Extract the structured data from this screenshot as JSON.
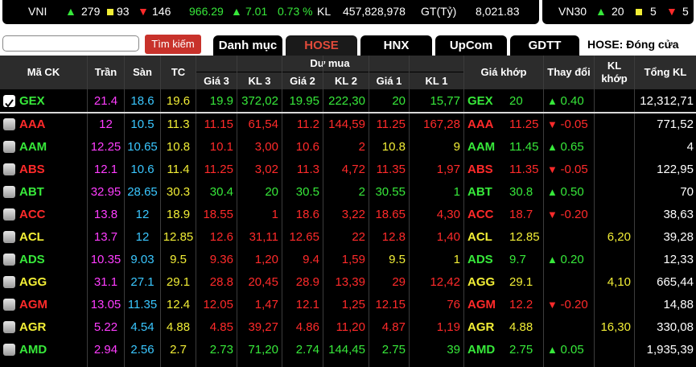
{
  "ticker": {
    "vni": {
      "name": "VNI",
      "up": "279",
      "flat": "93",
      "down": "146",
      "value": "966.29",
      "change": "7.01",
      "pct": "0.73 %",
      "kl_label": "KL",
      "kl": "457,828,978",
      "gt_label": "GT(Tỷ)",
      "gt": "8,021.83"
    },
    "vn30": {
      "name": "VN30",
      "up": "20",
      "flat": "5",
      "down": "5"
    }
  },
  "search": {
    "placeholder": "",
    "button": "Tìm kiếm"
  },
  "tabs": [
    "Danh mục",
    "HOSE",
    "HNX",
    "UpCom",
    "GDTT"
  ],
  "active_tab": "HOSE",
  "market_status": "HOSE:  Đóng cửa",
  "columns": {
    "code": "Mã CK",
    "ceiling": "Trần",
    "floor": "Sàn",
    "ref": "TC",
    "bid_group": "Dư mua",
    "g3": "Giá 3",
    "kl3": "KL 3",
    "g2": "Giá 2",
    "kl2": "KL 2",
    "g1": "Giá 1",
    "kl1": "KL 1",
    "match_price": "Giá khớp",
    "change": "Thay đổi",
    "match_vol": "KL khớp",
    "total_vol": "Tổng KL"
  },
  "rows": [
    {
      "code": "GEX",
      "checked": true,
      "ceil": "21.4",
      "floor": "18.6",
      "ref": "19.6",
      "g3": "19.9",
      "kl3": "372,02",
      "g2": "19.95",
      "kl2": "222,30",
      "g1": "20",
      "kl1": "15,77",
      "price": "20",
      "dir": "up",
      "chg": "0.40",
      "kl": "",
      "total": "12,312,71"
    },
    {
      "code": "AAA",
      "checked": false,
      "ceil": "12",
      "floor": "10.5",
      "ref": "11.3",
      "g3": "11.15",
      "kl3": "61,54",
      "g2": "11.2",
      "kl2": "144,59",
      "g1": "11.25",
      "kl1": "167,28",
      "price": "11.25",
      "dir": "down",
      "chg": "-0.05",
      "kl": "",
      "total": "771,52"
    },
    {
      "code": "AAM",
      "checked": false,
      "ceil": "12.25",
      "floor": "10.65",
      "ref": "10.8",
      "g3": "10.1",
      "kl3": "3,00",
      "g2": "10.6",
      "kl2": "2",
      "g1": "10.8",
      "kl1": "9",
      "price": "11.45",
      "dir": "up",
      "chg": "0.65",
      "kl": "",
      "total": "4"
    },
    {
      "code": "ABS",
      "checked": false,
      "ceil": "12.1",
      "floor": "10.6",
      "ref": "11.4",
      "g3": "11.25",
      "kl3": "3,02",
      "g2": "11.3",
      "kl2": "4,72",
      "g1": "11.35",
      "kl1": "1,97",
      "price": "11.35",
      "dir": "down",
      "chg": "-0.05",
      "kl": "",
      "total": "122,95"
    },
    {
      "code": "ABT",
      "checked": false,
      "ceil": "32.95",
      "floor": "28.65",
      "ref": "30.3",
      "g3": "30.4",
      "kl3": "20",
      "g2": "30.5",
      "kl2": "2",
      "g1": "30.55",
      "kl1": "1",
      "price": "30.8",
      "dir": "up",
      "chg": "0.50",
      "kl": "",
      "total": "70"
    },
    {
      "code": "ACC",
      "checked": false,
      "ceil": "13.8",
      "floor": "12",
      "ref": "18.9",
      "g3": "18.55",
      "kl3": "1",
      "g2": "18.6",
      "kl2": "3,22",
      "g1": "18.65",
      "kl1": "4,30",
      "price": "18.7",
      "dir": "down",
      "chg": "-0.20",
      "kl": "",
      "total": "38,63"
    },
    {
      "code": "ACL",
      "checked": false,
      "ceil": "13.7",
      "floor": "12",
      "ref": "12.85",
      "g3": "12.6",
      "kl3": "31,11",
      "g2": "12.65",
      "kl2": "22",
      "g1": "12.8",
      "kl1": "1,40",
      "price": "12.85",
      "dir": "ref",
      "chg": "",
      "kl": "6,20",
      "total": "39,28"
    },
    {
      "code": "ADS",
      "checked": false,
      "ceil": "10.35",
      "floor": "9.03",
      "ref": "9.5",
      "g3": "9.36",
      "kl3": "1,20",
      "g2": "9.4",
      "kl2": "1,59",
      "g1": "9.5",
      "kl1": "1",
      "price": "9.7",
      "dir": "up",
      "chg": "0.20",
      "kl": "",
      "total": "12,33"
    },
    {
      "code": "AGG",
      "checked": false,
      "ceil": "31.1",
      "floor": "27.1",
      "ref": "29.1",
      "g3": "28.8",
      "kl3": "20,45",
      "g2": "28.9",
      "kl2": "13,39",
      "g1": "29",
      "kl1": "12,42",
      "price": "29.1",
      "dir": "ref",
      "chg": "",
      "kl": "4,10",
      "total": "665,44"
    },
    {
      "code": "AGM",
      "checked": false,
      "ceil": "13.05",
      "floor": "11.35",
      "ref": "12.4",
      "g3": "12.05",
      "kl3": "1,47",
      "g2": "12.1",
      "kl2": "1,25",
      "g1": "12.15",
      "kl1": "76",
      "price": "12.2",
      "dir": "down",
      "chg": "-0.20",
      "kl": "",
      "total": "14,88"
    },
    {
      "code": "AGR",
      "checked": false,
      "ceil": "5.22",
      "floor": "4.54",
      "ref": "4.88",
      "g3": "4.85",
      "kl3": "39,27",
      "g2": "4.86",
      "kl2": "11,20",
      "g1": "4.87",
      "kl1": "1,19",
      "price": "4.88",
      "dir": "ref",
      "chg": "",
      "kl": "16,30",
      "total": "330,08"
    },
    {
      "code": "AMD",
      "checked": false,
      "ceil": "2.94",
      "floor": "2.56",
      "ref": "2.7",
      "g3": "2.73",
      "kl3": "71,20",
      "g2": "2.74",
      "kl2": "144,45",
      "g1": "2.75",
      "kl1": "39",
      "price": "2.75",
      "dir": "up",
      "chg": "0.05",
      "kl": "",
      "total": "1,935,39"
    }
  ],
  "colors": {
    "up": "#37e83a",
    "down": "#ff2a2a",
    "ref": "#f2ee36",
    "ceiling": "#ff3dff",
    "floor": "#3ac7ff"
  }
}
